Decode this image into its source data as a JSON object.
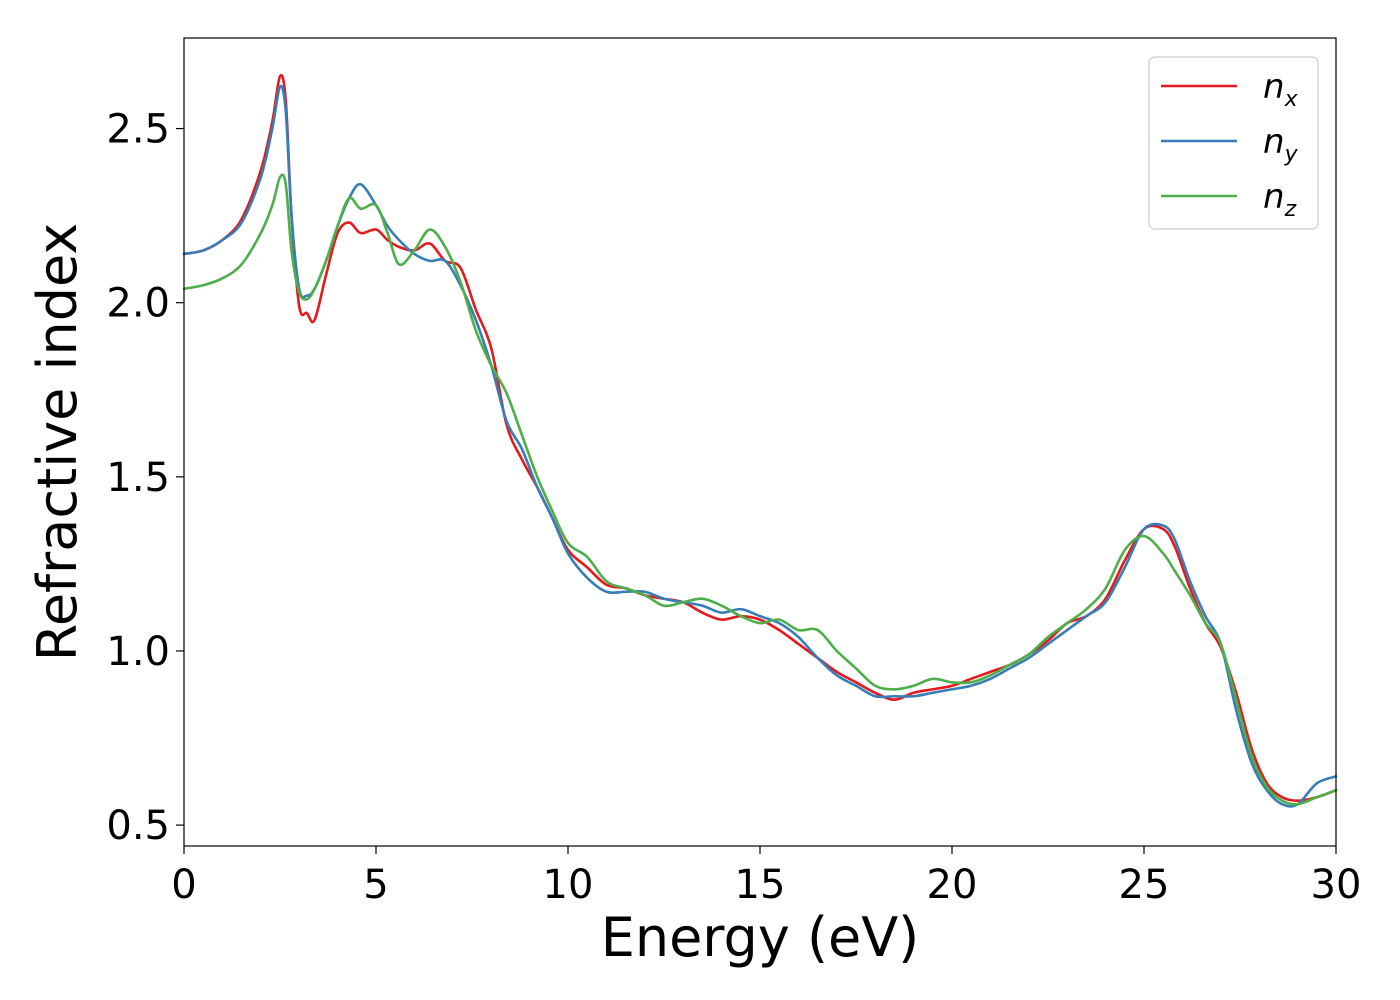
{
  "chart_data": {
    "type": "line",
    "xlabel": "Energy (eV)",
    "ylabel": "Refractive index",
    "xlim": [
      0,
      30
    ],
    "ylim": [
      0.44,
      2.76
    ],
    "xticks": [
      0,
      5,
      10,
      15,
      20,
      25,
      30
    ],
    "xtick_labels": [
      "0",
      "5",
      "10",
      "15",
      "20",
      "25",
      "30"
    ],
    "yticks": [
      0.5,
      1.0,
      1.5,
      2.0,
      2.5
    ],
    "ytick_labels": [
      "0.5",
      "1.0",
      "1.5",
      "2.0",
      "2.5"
    ],
    "grid": false,
    "legend_position": "top-right",
    "series": [
      {
        "name": "n_x",
        "legend_base": "n",
        "legend_sub": "x",
        "color": "#e41a1c",
        "x": [
          0,
          0.5,
          1.0,
          1.5,
          2.0,
          2.3,
          2.5,
          2.65,
          2.8,
          3.0,
          3.2,
          3.4,
          3.7,
          4.0,
          4.3,
          4.6,
          5.0,
          5.3,
          5.6,
          6.0,
          6.4,
          6.8,
          7.2,
          7.6,
          8.0,
          8.4,
          8.8,
          9.2,
          9.6,
          10.0,
          10.5,
          11.0,
          11.5,
          12.0,
          12.5,
          13.0,
          13.5,
          14.0,
          14.5,
          15.0,
          15.5,
          16.0,
          16.5,
          17.0,
          17.5,
          18.0,
          18.5,
          19.0,
          19.5,
          20.0,
          20.5,
          21.0,
          21.5,
          22.0,
          22.5,
          23.0,
          23.5,
          24.0,
          24.5,
          25.0,
          25.5,
          25.8,
          26.2,
          26.6,
          27.0,
          27.4,
          27.8,
          28.2,
          28.6,
          29.0,
          29.5,
          30.0
        ],
        "y": [
          2.14,
          2.15,
          2.18,
          2.24,
          2.38,
          2.52,
          2.65,
          2.58,
          2.25,
          1.99,
          1.97,
          1.95,
          2.08,
          2.2,
          2.23,
          2.2,
          2.21,
          2.18,
          2.16,
          2.15,
          2.17,
          2.12,
          2.1,
          1.98,
          1.87,
          1.65,
          1.55,
          1.47,
          1.38,
          1.29,
          1.24,
          1.19,
          1.18,
          1.16,
          1.15,
          1.14,
          1.11,
          1.09,
          1.1,
          1.09,
          1.06,
          1.02,
          0.98,
          0.94,
          0.91,
          0.88,
          0.86,
          0.88,
          0.89,
          0.9,
          0.92,
          0.94,
          0.96,
          0.99,
          1.03,
          1.08,
          1.1,
          1.15,
          1.26,
          1.35,
          1.35,
          1.3,
          1.18,
          1.08,
          1.01,
          0.88,
          0.72,
          0.62,
          0.58,
          0.57,
          0.58,
          0.6
        ]
      },
      {
        "name": "n_y",
        "legend_base": "n",
        "legend_sub": "y",
        "color": "#377eb8",
        "x": [
          0,
          0.5,
          1.0,
          1.5,
          2.0,
          2.3,
          2.5,
          2.65,
          2.8,
          3.0,
          3.2,
          3.4,
          3.7,
          4.0,
          4.3,
          4.6,
          5.0,
          5.3,
          5.6,
          6.0,
          6.4,
          6.8,
          7.2,
          7.6,
          8.0,
          8.4,
          8.8,
          9.2,
          9.6,
          10.0,
          10.5,
          11.0,
          11.5,
          12.0,
          12.5,
          13.0,
          13.5,
          14.0,
          14.5,
          15.0,
          15.5,
          16.0,
          16.5,
          17.0,
          17.5,
          18.0,
          18.5,
          19.0,
          19.5,
          20.0,
          20.5,
          21.0,
          21.5,
          22.0,
          22.5,
          23.0,
          23.5,
          24.0,
          24.5,
          25.0,
          25.5,
          25.8,
          26.2,
          26.6,
          27.0,
          27.4,
          27.8,
          28.2,
          28.6,
          29.0,
          29.5,
          30.0
        ],
        "y": [
          2.14,
          2.15,
          2.18,
          2.23,
          2.36,
          2.5,
          2.62,
          2.55,
          2.25,
          2.04,
          2.02,
          2.04,
          2.12,
          2.22,
          2.3,
          2.34,
          2.28,
          2.22,
          2.18,
          2.14,
          2.12,
          2.12,
          2.05,
          1.95,
          1.82,
          1.66,
          1.58,
          1.47,
          1.38,
          1.28,
          1.21,
          1.17,
          1.17,
          1.17,
          1.15,
          1.14,
          1.13,
          1.11,
          1.12,
          1.1,
          1.08,
          1.04,
          0.98,
          0.93,
          0.9,
          0.87,
          0.87,
          0.87,
          0.88,
          0.89,
          0.9,
          0.92,
          0.95,
          0.98,
          1.02,
          1.06,
          1.1,
          1.14,
          1.24,
          1.35,
          1.36,
          1.32,
          1.2,
          1.1,
          1.02,
          0.83,
          0.68,
          0.6,
          0.56,
          0.56,
          0.62,
          0.64
        ]
      },
      {
        "name": "n_z",
        "legend_base": "n",
        "legend_sub": "z",
        "color": "#4daf4a",
        "x": [
          0,
          0.5,
          1.0,
          1.5,
          2.0,
          2.3,
          2.5,
          2.65,
          2.8,
          3.0,
          3.2,
          3.4,
          3.7,
          4.0,
          4.3,
          4.6,
          5.0,
          5.3,
          5.6,
          6.0,
          6.4,
          6.8,
          7.2,
          7.6,
          8.0,
          8.4,
          8.8,
          9.2,
          9.6,
          10.0,
          10.5,
          11.0,
          11.5,
          12.0,
          12.5,
          13.0,
          13.5,
          14.0,
          14.5,
          15.0,
          15.5,
          16.0,
          16.5,
          17.0,
          17.5,
          18.0,
          18.5,
          19.0,
          19.5,
          20.0,
          20.5,
          21.0,
          21.5,
          22.0,
          22.5,
          23.0,
          23.5,
          24.0,
          24.5,
          25.0,
          25.5,
          25.8,
          26.2,
          26.6,
          27.0,
          27.4,
          27.8,
          28.2,
          28.6,
          29.0,
          29.5,
          30.0
        ],
        "y": [
          2.04,
          2.05,
          2.07,
          2.11,
          2.2,
          2.28,
          2.36,
          2.34,
          2.15,
          2.03,
          2.01,
          2.04,
          2.12,
          2.22,
          2.3,
          2.27,
          2.28,
          2.2,
          2.11,
          2.15,
          2.21,
          2.16,
          2.06,
          1.92,
          1.82,
          1.74,
          1.62,
          1.5,
          1.4,
          1.31,
          1.27,
          1.2,
          1.18,
          1.16,
          1.13,
          1.14,
          1.15,
          1.13,
          1.1,
          1.08,
          1.09,
          1.06,
          1.06,
          1.0,
          0.95,
          0.9,
          0.89,
          0.9,
          0.92,
          0.91,
          0.91,
          0.93,
          0.96,
          0.99,
          1.04,
          1.08,
          1.12,
          1.18,
          1.29,
          1.33,
          1.28,
          1.23,
          1.16,
          1.08,
          1.02,
          0.86,
          0.7,
          0.61,
          0.57,
          0.56,
          0.58,
          0.6
        ]
      }
    ]
  }
}
